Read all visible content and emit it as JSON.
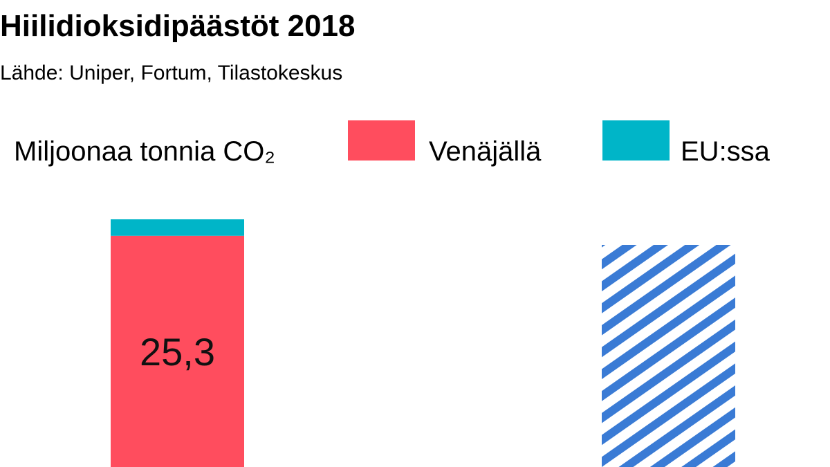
{
  "title": "Hiilidioksidipäästöt 2018",
  "subtitle": "Lähde: Uniper, Fortum, Tilastokeskus",
  "unit_label": "Miljoonaa tonnia CO₂",
  "colors": {
    "russia": "#ff4d5e",
    "eu": "#00b5c8",
    "hatch": "#3a7bd5",
    "text": "#111111"
  },
  "legend": [
    {
      "label": "Venäjällä",
      "color_key": "russia"
    },
    {
      "label": "EU:ssa",
      "color_key": "eu"
    }
  ],
  "chart_data": {
    "type": "bar",
    "stacked": true,
    "bars": [
      {
        "segments": [
          {
            "series": "Venäjällä",
            "value": 25.3,
            "label": "25,3",
            "fill": "russia"
          },
          {
            "series": "EU:ssa",
            "value": 1.8,
            "label": "",
            "fill": "eu"
          }
        ]
      },
      {
        "segments": [
          {
            "series": "",
            "value": 24.3,
            "label": "",
            "fill": "hatch"
          }
        ]
      }
    ]
  }
}
